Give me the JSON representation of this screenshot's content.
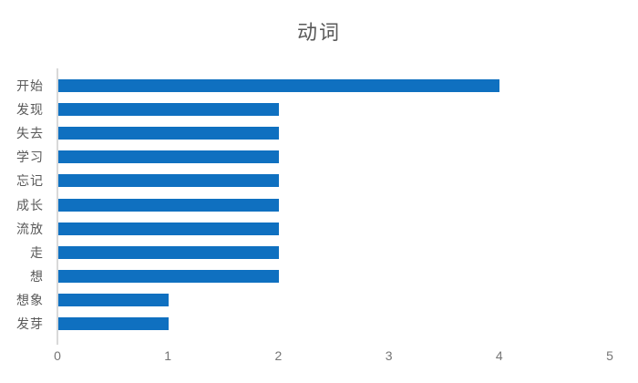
{
  "chart_data": {
    "type": "bar",
    "orientation": "horizontal",
    "title": "动词",
    "categories": [
      "开始",
      "发现",
      "失去",
      "学习",
      "忘记",
      "成长",
      "流放",
      "走",
      "想",
      "想象",
      "发芽"
    ],
    "values": [
      4,
      2,
      2,
      2,
      2,
      2,
      2,
      2,
      2,
      1,
      1
    ],
    "xlabel": "",
    "ylabel": "",
    "xlim": [
      0,
      5
    ],
    "x_ticks": [
      0,
      1,
      2,
      3,
      4,
      5
    ],
    "grid": false,
    "legend": false,
    "layout": {
      "title_position": "top-center",
      "category_axis": "left",
      "value_axis": "bottom"
    },
    "colors": {
      "bar": "#0f70c0",
      "axis_line": "#d9d9d9",
      "title_text": "#595959",
      "category_text": "#595959",
      "tick_text": "#757575",
      "background": "#ffffff"
    }
  }
}
